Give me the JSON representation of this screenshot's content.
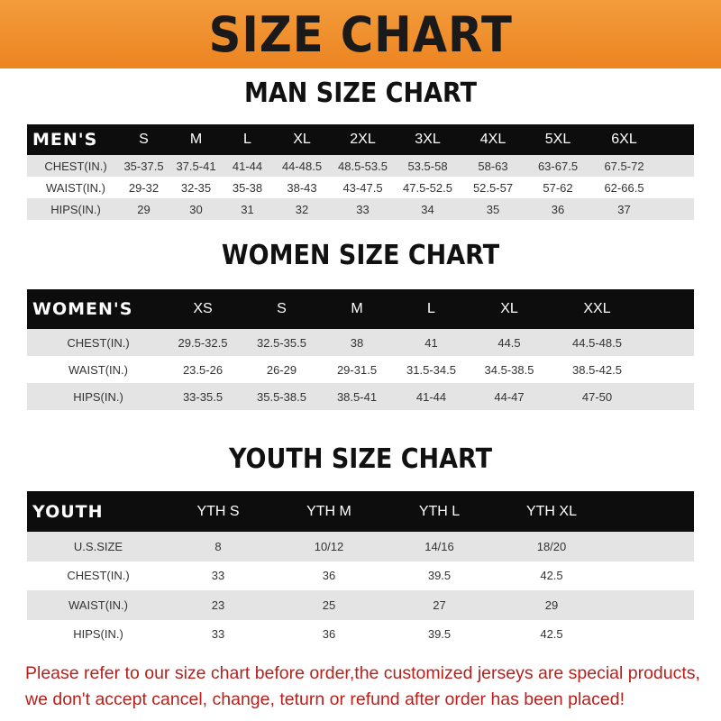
{
  "title": "SIZE CHART",
  "men": {
    "title": "MAN SIZE CHART",
    "header": [
      "MEN'S",
      "S",
      "M",
      "L",
      "XL",
      "2XL",
      "3XL",
      "4XL",
      "5XL",
      "6XL"
    ],
    "rows": [
      [
        "CHEST(IN.)",
        "35-37.5",
        "37.5-41",
        "41-44",
        "44-48.5",
        "48.5-53.5",
        "53.5-58",
        "58-63",
        "63-67.5",
        "67.5-72"
      ],
      [
        "WAIST(IN.)",
        "29-32",
        "32-35",
        "35-38",
        "38-43",
        "43-47.5",
        "47.5-52.5",
        "52.5-57",
        "57-62",
        "62-66.5"
      ],
      [
        "HIPS(IN.)",
        "29",
        "30",
        "31",
        "32",
        "33",
        "34",
        "35",
        "36",
        "37"
      ]
    ]
  },
  "women": {
    "title": "WOMEN SIZE CHART",
    "header": [
      "WOMEN'S",
      "XS",
      "S",
      "M",
      "L",
      "XL",
      "XXL"
    ],
    "rows": [
      [
        "CHEST(IN.)",
        "29.5-32.5",
        "32.5-35.5",
        "38",
        "41",
        "44.5",
        "44.5-48.5"
      ],
      [
        "WAIST(IN.)",
        "23.5-26",
        "26-29",
        "29-31.5",
        "31.5-34.5",
        "34.5-38.5",
        "38.5-42.5"
      ],
      [
        "HIPS(IN.)",
        "33-35.5",
        "35.5-38.5",
        "38.5-41",
        "41-44",
        "44-47",
        "47-50"
      ]
    ]
  },
  "youth": {
    "title": "YOUTH SIZE CHART",
    "header": [
      "YOUTH",
      "YTH S",
      "YTH M",
      "YTH L",
      "YTH XL"
    ],
    "rows": [
      [
        "U.S.SIZE",
        "8",
        "10/12",
        "14/16",
        "18/20"
      ],
      [
        "CHEST(IN.)",
        "33",
        "36",
        "39.5",
        "42.5"
      ],
      [
        "WAIST(IN.)",
        "23",
        "25",
        "27",
        "29"
      ],
      [
        "HIPS(IN.)",
        "33",
        "36",
        "39.5",
        "42.5"
      ]
    ]
  },
  "notice": [
    "Please refer to our size chart before order,the customized jerseys are special products,",
    "we don't accept cancel, change, teturn or refund after order has been placed!"
  ],
  "colors": {
    "banner": "#ec8420",
    "header_row": "#0d0d0d",
    "stripe": "#e4e4e4",
    "notice": "#b8201c"
  }
}
